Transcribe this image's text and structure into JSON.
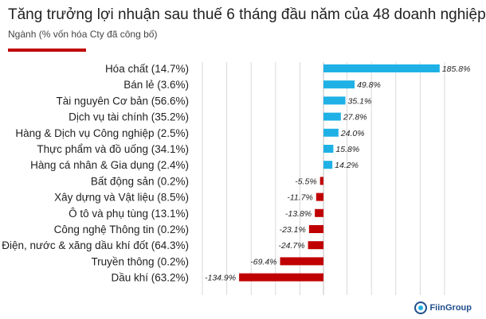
{
  "title": "Tăng trưởng lợi nhuận sau thuế 6 tháng đầu năm của 48 doanh nghiệp",
  "subtitle": "Ngành (% vốn hóa Cty đã công bố)",
  "brand": "FiinGroup",
  "colors": {
    "positive": "#1fb1e6",
    "negative": "#c00000",
    "accent_rule": "#c00000",
    "grid": "#d9d9d9",
    "logo": "#1f4e8c"
  },
  "chart_data": {
    "type": "bar",
    "orientation": "horizontal",
    "categories": [
      "Hóa chất (14.7%)",
      "Bán lẻ (3.6%)",
      "Tài nguyên Cơ bản (56.6%)",
      "Dịch vụ tài chính (35.2%)",
      "Hàng & Dịch vụ Công nghiệp (2.5%)",
      "Thực phẩm và đồ uống (34.1%)",
      "Hàng cá nhân & Gia dụng (2.4%)",
      "Bất động sản (0.2%)",
      "Xây dựng và Vật liệu (8.5%)",
      "Ô tô và phụ tùng (13.1%)",
      "Công nghệ Thông tin (0.2%)",
      "Điện, nước & xăng dầu khí đốt (64.3%)",
      "Truyền thông (0.2%)",
      "Dầu khí (63.2%)"
    ],
    "values": [
      185.8,
      49.8,
      35.1,
      27.8,
      24.0,
      15.8,
      14.2,
      -5.5,
      -11.7,
      -13.8,
      -23.1,
      -24.7,
      -69.4,
      -134.9
    ],
    "labels": [
      "185.8%",
      "49.8%",
      "35.1%",
      "27.8%",
      "24.0%",
      "15.8%",
      "14.2%",
      "-5.5%",
      "-11.7%",
      "-13.8%",
      "-23.1%",
      "-24.7%",
      "-69.4%",
      "-134.9%"
    ],
    "xlim": [
      -150,
      200
    ],
    "grid": true,
    "legend": "none"
  }
}
